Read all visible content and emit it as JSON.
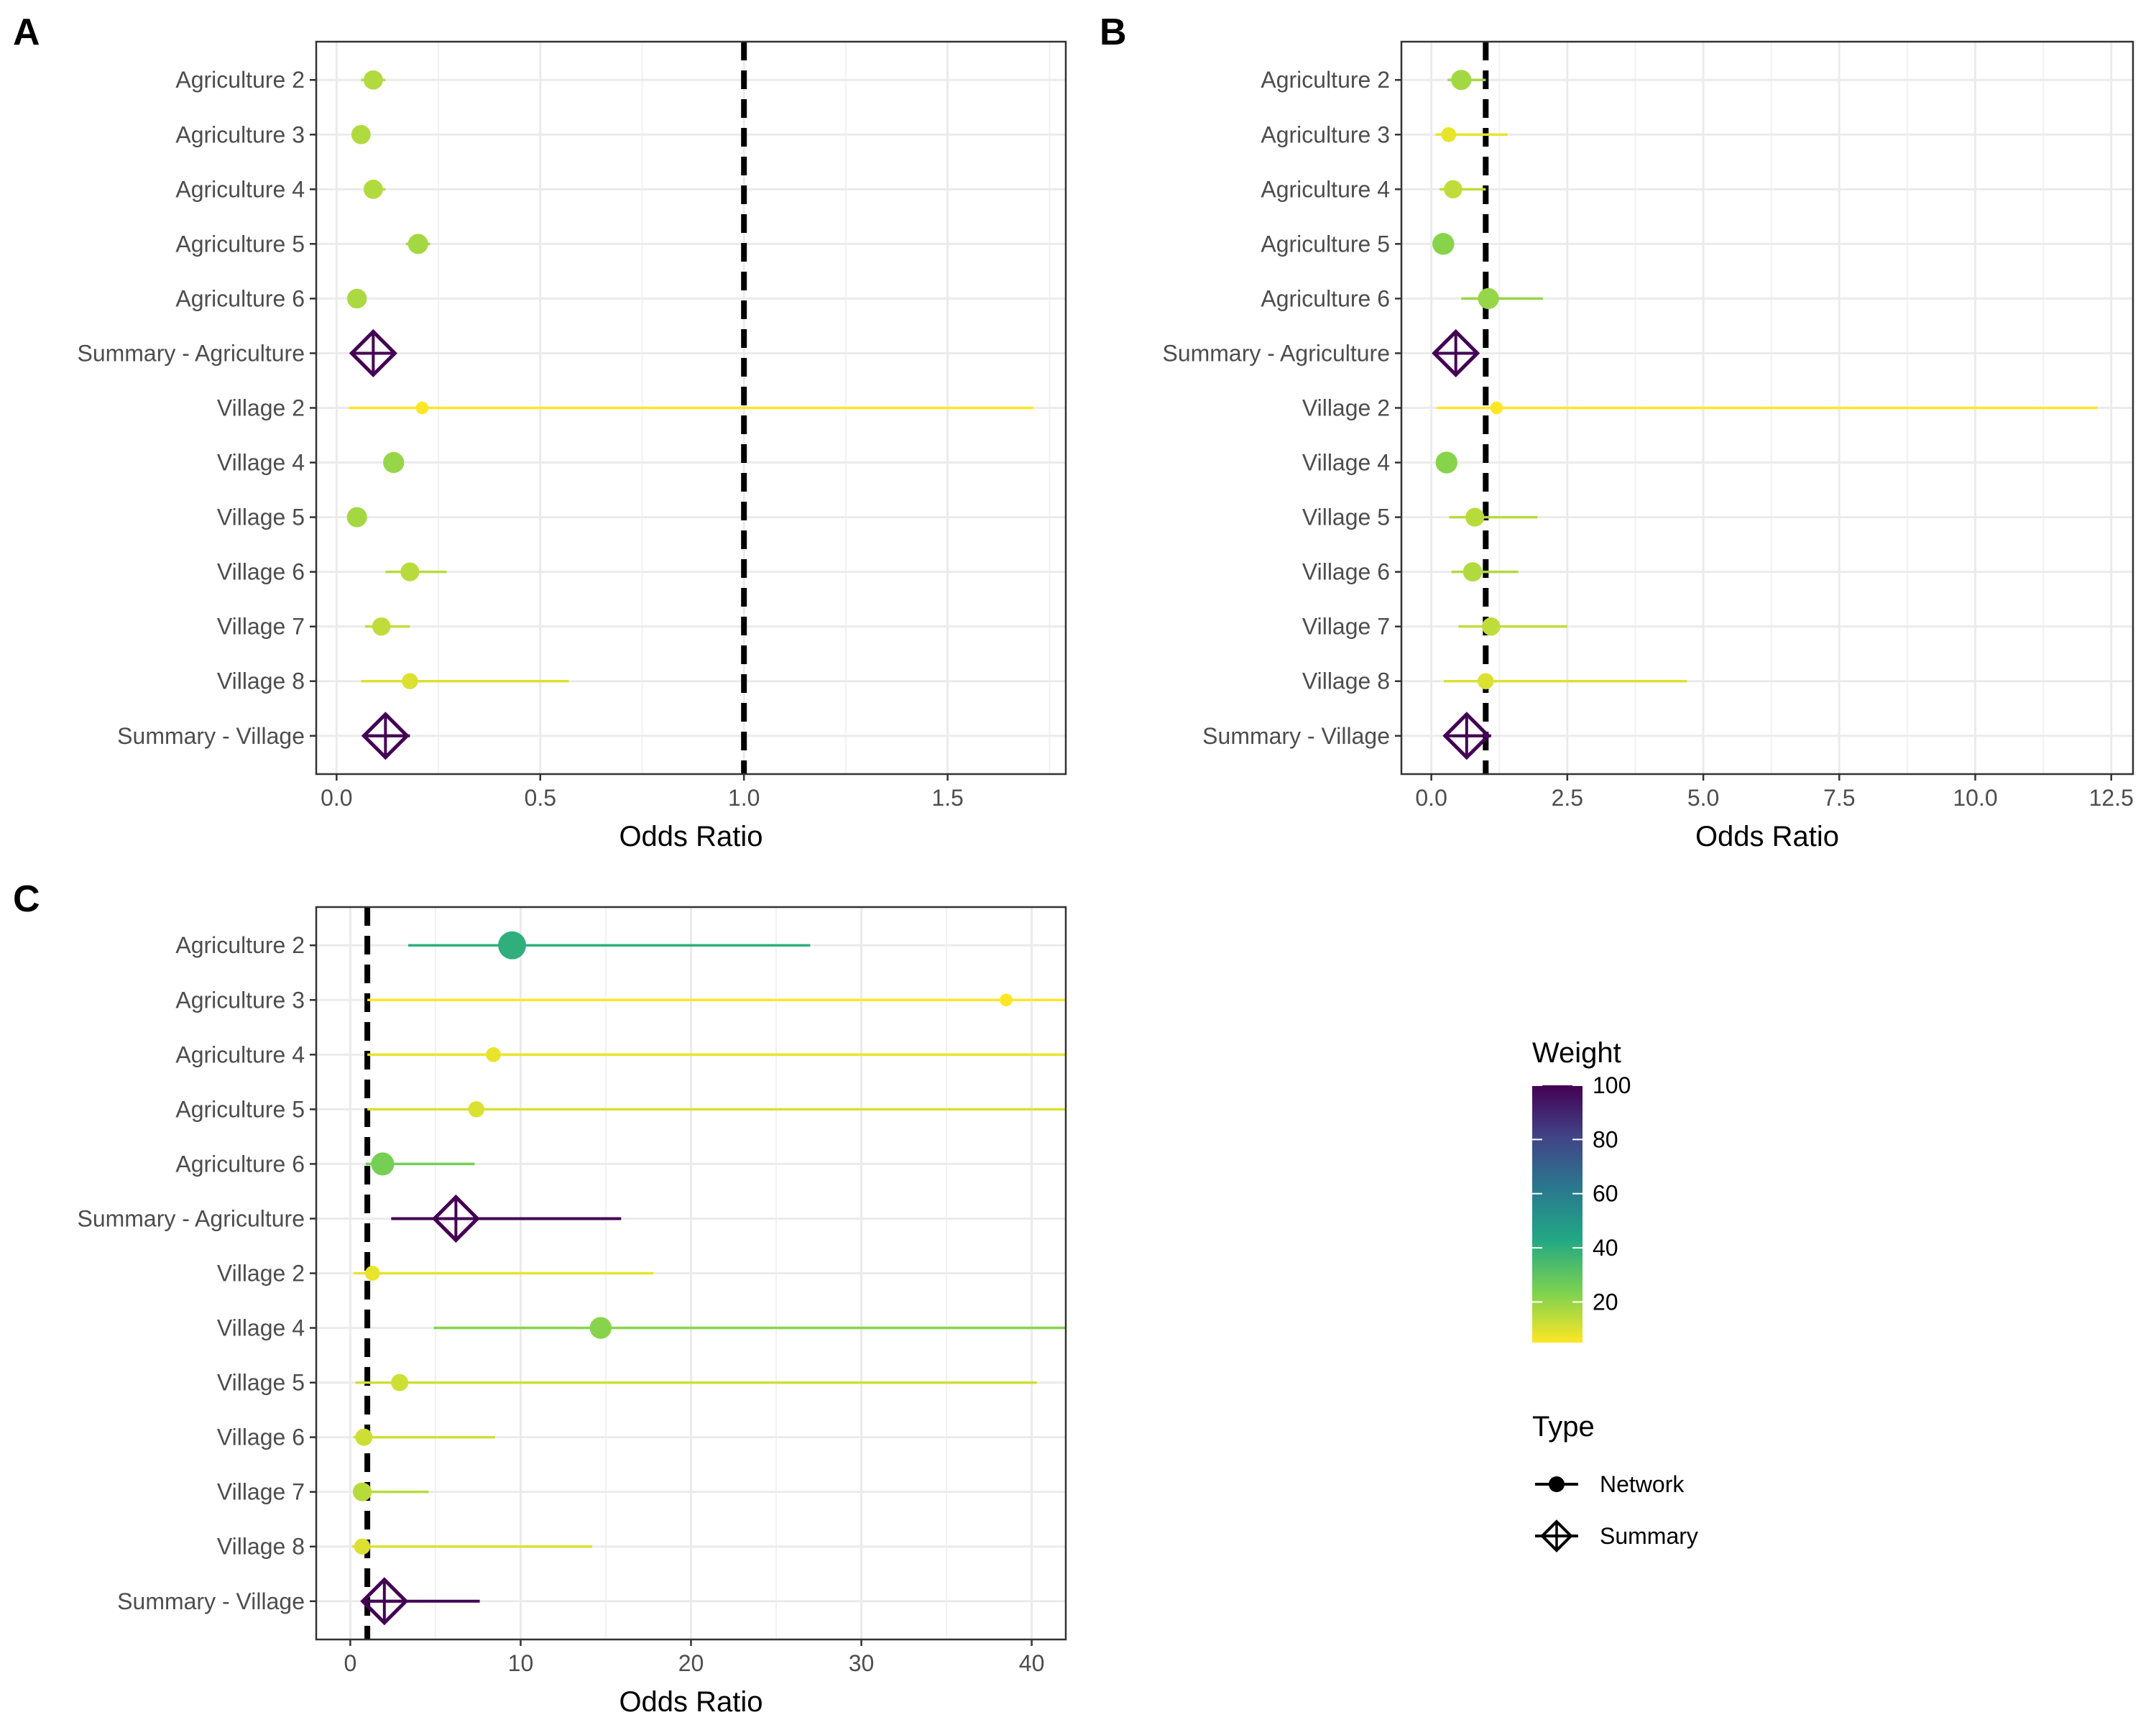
{
  "chart_data": [
    {
      "panel": "A",
      "type": "forest",
      "xlabel": "Odds Ratio",
      "xlim": [
        -0.05,
        1.79
      ],
      "xticks": [
        0.0,
        0.5,
        1.0,
        1.5
      ],
      "xtick_labels": [
        "0.0",
        "0.5",
        "1.0",
        "1.5"
      ],
      "reference_line": 1.0,
      "rows": [
        {
          "label": "Agriculture 2",
          "or": 0.09,
          "lo": 0.06,
          "hi": 0.12,
          "weight": 16,
          "type": "Network"
        },
        {
          "label": "Agriculture 3",
          "or": 0.06,
          "lo": 0.05,
          "hi": 0.07,
          "weight": 16,
          "type": "Network"
        },
        {
          "label": "Agriculture 4",
          "or": 0.09,
          "lo": 0.07,
          "hi": 0.12,
          "weight": 16,
          "type": "Network"
        },
        {
          "label": "Agriculture 5",
          "or": 0.2,
          "lo": 0.17,
          "hi": 0.23,
          "weight": 18,
          "type": "Network"
        },
        {
          "label": "Agriculture 6",
          "or": 0.05,
          "lo": 0.04,
          "hi": 0.06,
          "weight": 17,
          "type": "Network"
        },
        {
          "label": "Summary - Agriculture",
          "or": 0.09,
          "lo": 0.07,
          "hi": 0.11,
          "weight": 100,
          "type": "Summary"
        },
        {
          "label": "Village 2",
          "or": 0.21,
          "lo": 0.03,
          "hi": 1.71,
          "weight": 5,
          "type": "Network"
        },
        {
          "label": "Village 4",
          "or": 0.14,
          "lo": 0.12,
          "hi": 0.16,
          "weight": 20,
          "type": "Network"
        },
        {
          "label": "Village 5",
          "or": 0.05,
          "lo": 0.04,
          "hi": 0.06,
          "weight": 18,
          "type": "Network"
        },
        {
          "label": "Village 6",
          "or": 0.18,
          "lo": 0.12,
          "hi": 0.27,
          "weight": 15,
          "type": "Network"
        },
        {
          "label": "Village 7",
          "or": 0.11,
          "lo": 0.07,
          "hi": 0.18,
          "weight": 14,
          "type": "Network"
        },
        {
          "label": "Village 8",
          "or": 0.18,
          "lo": 0.06,
          "hi": 0.57,
          "weight": 10,
          "type": "Network"
        },
        {
          "label": "Summary - Village",
          "or": 0.12,
          "lo": 0.08,
          "hi": 0.18,
          "weight": 100,
          "type": "Summary"
        }
      ]
    },
    {
      "panel": "B",
      "type": "forest",
      "xlabel": "Odds Ratio",
      "xlim": [
        -0.55,
        12.9
      ],
      "xticks": [
        0.0,
        2.5,
        5.0,
        7.5,
        10.0,
        12.5
      ],
      "xtick_labels": [
        "0.0",
        "2.5",
        "5.0",
        "7.5",
        "10.0",
        "12.5"
      ],
      "reference_line": 1.0,
      "rows": [
        {
          "label": "Agriculture 2",
          "or": 0.55,
          "lo": 0.3,
          "hi": 1.0,
          "weight": 18,
          "type": "Network"
        },
        {
          "label": "Agriculture 3",
          "or": 0.32,
          "lo": 0.08,
          "hi": 1.4,
          "weight": 8,
          "type": "Network"
        },
        {
          "label": "Agriculture 4",
          "or": 0.4,
          "lo": 0.15,
          "hi": 1.0,
          "weight": 14,
          "type": "Network"
        },
        {
          "label": "Agriculture 5",
          "or": 0.22,
          "lo": 0.15,
          "hi": 0.35,
          "weight": 22,
          "type": "Network"
        },
        {
          "label": "Agriculture 6",
          "or": 1.05,
          "lo": 0.55,
          "hi": 2.05,
          "weight": 20,
          "type": "Network"
        },
        {
          "label": "Summary - Agriculture",
          "or": 0.45,
          "lo": 0.25,
          "hi": 0.8,
          "weight": 100,
          "type": "Summary"
        },
        {
          "label": "Village 2",
          "or": 1.2,
          "lo": 0.1,
          "hi": 12.25,
          "weight": 5,
          "type": "Network"
        },
        {
          "label": "Village 4",
          "or": 0.28,
          "lo": 0.2,
          "hi": 0.4,
          "weight": 22,
          "type": "Network"
        },
        {
          "label": "Village 5",
          "or": 0.8,
          "lo": 0.33,
          "hi": 1.95,
          "weight": 15,
          "type": "Network"
        },
        {
          "label": "Village 6",
          "or": 0.76,
          "lo": 0.37,
          "hi": 1.6,
          "weight": 16,
          "type": "Network"
        },
        {
          "label": "Village 7",
          "or": 1.1,
          "lo": 0.5,
          "hi": 2.5,
          "weight": 14,
          "type": "Network"
        },
        {
          "label": "Village 8",
          "or": 1.0,
          "lo": 0.23,
          "hi": 4.7,
          "weight": 10,
          "type": "Network"
        },
        {
          "label": "Summary - Village",
          "or": 0.65,
          "lo": 0.4,
          "hi": 1.1,
          "weight": 100,
          "type": "Summary"
        }
      ]
    },
    {
      "panel": "C",
      "type": "forest",
      "xlabel": "Odds Ratio",
      "xlim": [
        -2,
        42
      ],
      "xticks": [
        0,
        10,
        20,
        30,
        40
      ],
      "xtick_labels": [
        "0",
        "10",
        "20",
        "30",
        "40"
      ],
      "reference_line": 1.0,
      "rows": [
        {
          "label": "Agriculture 2",
          "or": 9.5,
          "lo": 3.4,
          "hi": 27.0,
          "weight": 40,
          "type": "Network"
        },
        {
          "label": "Agriculture 3",
          "or": 38.5,
          "lo": 1.0,
          "hi": 42,
          "weight": 5,
          "type": "Network"
        },
        {
          "label": "Agriculture 4",
          "or": 8.4,
          "lo": 1.0,
          "hi": 42,
          "weight": 8,
          "type": "Network"
        },
        {
          "label": "Agriculture 5",
          "or": 7.4,
          "lo": 1.0,
          "hi": 42,
          "weight": 10,
          "type": "Network"
        },
        {
          "label": "Agriculture 6",
          "or": 1.9,
          "lo": 0.9,
          "hi": 7.3,
          "weight": 25,
          "type": "Network"
        },
        {
          "label": "Summary - Agriculture",
          "or": 6.2,
          "lo": 2.4,
          "hi": 15.9,
          "weight": 100,
          "type": "Summary"
        },
        {
          "label": "Village 2",
          "or": 1.3,
          "lo": 0.2,
          "hi": 17.8,
          "weight": 8,
          "type": "Network"
        },
        {
          "label": "Village 4",
          "or": 14.7,
          "lo": 4.9,
          "hi": 42,
          "weight": 22,
          "type": "Network"
        },
        {
          "label": "Village 5",
          "or": 2.9,
          "lo": 0.3,
          "hi": 40.3,
          "weight": 12,
          "type": "Network"
        },
        {
          "label": "Village 6",
          "or": 0.8,
          "lo": 0.2,
          "hi": 8.5,
          "weight": 12,
          "type": "Network"
        },
        {
          "label": "Village 7",
          "or": 0.7,
          "lo": 0.2,
          "hi": 4.6,
          "weight": 15,
          "type": "Network"
        },
        {
          "label": "Village 8",
          "or": 0.7,
          "lo": 0.1,
          "hi": 14.2,
          "weight": 10,
          "type": "Network"
        },
        {
          "label": "Summary - Village",
          "or": 2.0,
          "lo": 0.7,
          "hi": 7.6,
          "weight": 100,
          "type": "Summary"
        }
      ]
    }
  ],
  "legend": {
    "weight": {
      "title": "Weight",
      "ticks": [
        20,
        40,
        60,
        80,
        100
      ],
      "tick_labels": [
        "20",
        "40",
        "60",
        "80",
        "100"
      ],
      "range": [
        5,
        100
      ],
      "colors": [
        "#FDE725",
        "#7AD151",
        "#22A884",
        "#2A788E",
        "#414487",
        "#440154"
      ]
    },
    "type": {
      "title": "Type",
      "items": [
        {
          "label": "Network",
          "shape": "point-icon"
        },
        {
          "label": "Summary",
          "shape": "diamond-cross-icon"
        }
      ]
    }
  },
  "summary_color": "#440154"
}
